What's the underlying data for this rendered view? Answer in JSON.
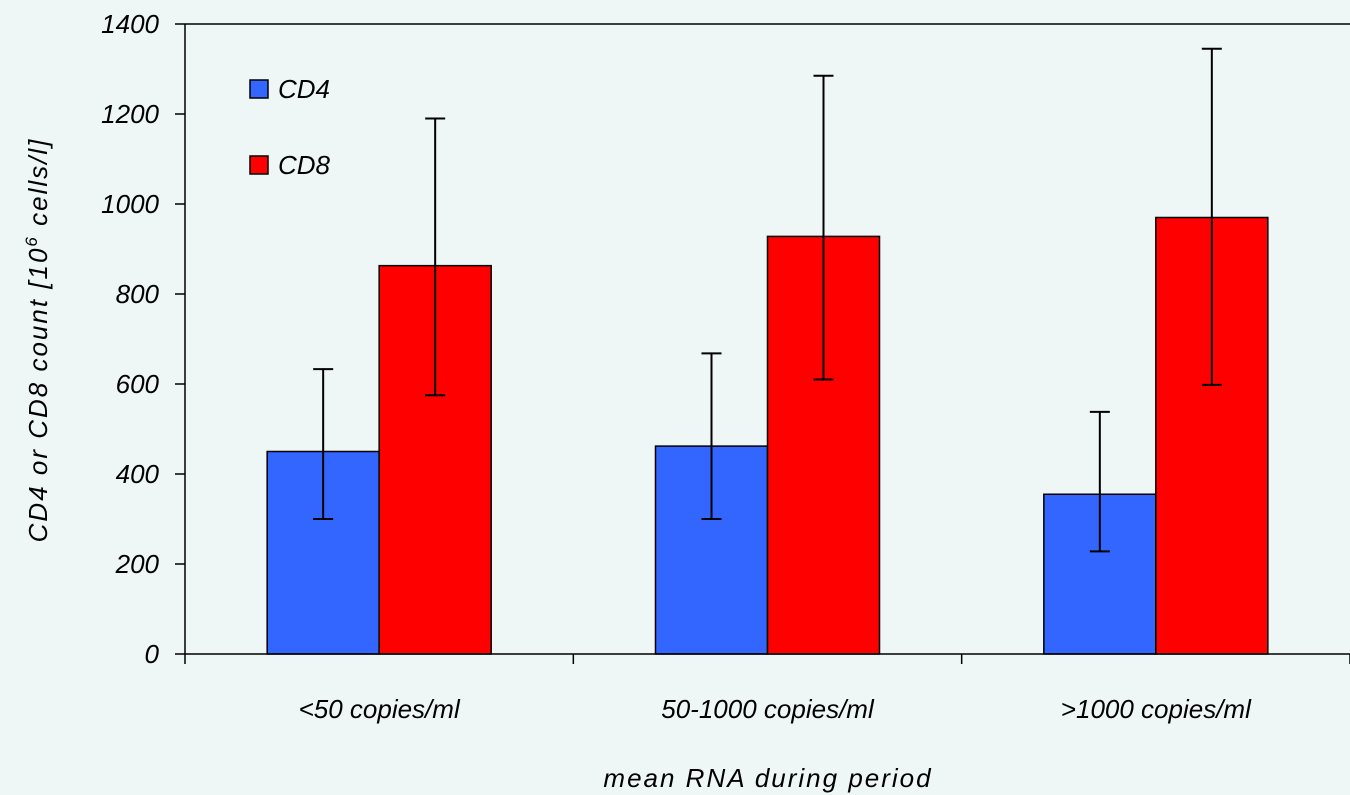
{
  "chart_data": {
    "type": "bar",
    "categories": [
      "<50 copies/ml",
      "50-1000 copies/ml",
      ">1000 copies/ml"
    ],
    "series": [
      {
        "name": "CD4",
        "color": "#3366ff",
        "values": [
          450,
          462,
          355
        ],
        "err_low": [
          300,
          300,
          228
        ],
        "err_high": [
          633,
          668,
          538
        ]
      },
      {
        "name": "CD8",
        "color": "#ff0000",
        "values": [
          863,
          928,
          970
        ],
        "err_low": [
          575,
          610,
          598
        ],
        "err_high": [
          1190,
          1285,
          1345
        ]
      }
    ],
    "xlabel": "mean RNA during period",
    "ylabel_prefix": "CD4 or CD8 count [10",
    "ylabel_sup": "6",
    "ylabel_suffix": " cells/l]",
    "ylim": [
      0,
      1400
    ],
    "yticks": [
      0,
      200,
      400,
      600,
      800,
      1000,
      1200,
      1400
    ],
    "grid": false,
    "legend_position": "top-left"
  }
}
